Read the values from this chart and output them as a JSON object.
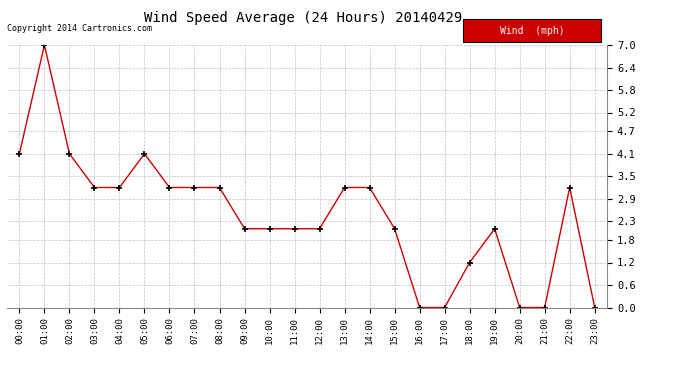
{
  "title": "Wind Speed Average (24 Hours) 20140429",
  "copyright": "Copyright 2014 Cartronics.com",
  "x_labels": [
    "00:00",
    "01:00",
    "02:00",
    "03:00",
    "04:00",
    "05:00",
    "06:00",
    "07:00",
    "08:00",
    "09:00",
    "10:00",
    "11:00",
    "12:00",
    "13:00",
    "14:00",
    "15:00",
    "16:00",
    "17:00",
    "18:00",
    "19:00",
    "20:00",
    "21:00",
    "22:00",
    "23:00"
  ],
  "y_values": [
    4.1,
    7.0,
    4.1,
    3.2,
    3.2,
    4.1,
    3.2,
    3.2,
    3.2,
    2.1,
    2.1,
    2.1,
    2.1,
    3.2,
    3.2,
    2.1,
    0.0,
    0.0,
    1.2,
    2.1,
    0.0,
    0.0,
    3.2,
    0.0
  ],
  "line_color": "#cc0000",
  "marker": "+",
  "bg_color": "#ffffff",
  "grid_color": "#c0c0c0",
  "ylim": [
    0.0,
    7.0
  ],
  "yticks": [
    0.0,
    0.6,
    1.2,
    1.8,
    2.3,
    2.9,
    3.5,
    4.1,
    4.7,
    5.2,
    5.8,
    6.4,
    7.0
  ],
  "ytick_labels": [
    "0.0",
    "0.6",
    "1.2",
    "1.8",
    "2.3",
    "2.9",
    "3.5",
    "4.1",
    "4.7",
    "5.2",
    "5.8",
    "6.4",
    "7.0"
  ],
  "legend_label": "Wind  (mph)",
  "legend_bg": "#cc0000",
  "legend_text_color": "#ffffff"
}
